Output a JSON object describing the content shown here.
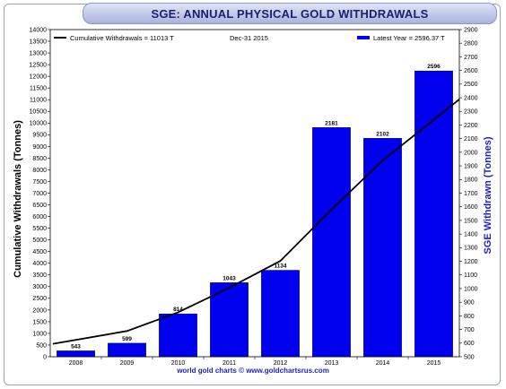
{
  "chart_data": {
    "type": "bar",
    "title": "SGE: ANNUAL PHYSICAL GOLD WITHDRAWALS",
    "categories": [
      "2008",
      "2009",
      "2010",
      "2011",
      "2012",
      "2013",
      "2014",
      "2015"
    ],
    "bar_series": {
      "legend_label": "Latest Year = 2596.37 T",
      "values": [
        543,
        599,
        814,
        1043,
        1134,
        2181,
        2102,
        2596
      ],
      "data_labels": [
        "543",
        "599",
        "814",
        "1043",
        "1134",
        "2181",
        "2102",
        "2596"
      ],
      "color": "#0000ee",
      "axis": "right"
    },
    "line_series": {
      "legend_label": "Cumulative Withdrawals = 11013 T",
      "x": [
        2007.55,
        2009,
        2010,
        2011,
        2012,
        2013,
        2014,
        2015.5
      ],
      "values": [
        550,
        1100,
        1900,
        2950,
        4100,
        6300,
        8400,
        11013
      ],
      "color": "#000000",
      "axis": "left"
    },
    "date_label": "Dec-31  2015",
    "ylabel_left": "Cumulative Withdrawals (Tonnes)",
    "ylabel_right": "SGE Withdrawn (Tonnes)",
    "ylim_left": [
      0,
      14000
    ],
    "ylim_right": [
      500,
      2900
    ],
    "yticks_left": [
      0,
      500,
      1000,
      1500,
      2000,
      2500,
      3000,
      3500,
      4000,
      4500,
      5000,
      5500,
      6000,
      6500,
      7000,
      7500,
      8000,
      8500,
      9000,
      9500,
      10000,
      10500,
      11000,
      11500,
      12000,
      12500,
      13000,
      13500,
      14000
    ],
    "yticks_right": [
      500,
      600,
      700,
      800,
      900,
      1000,
      1100,
      1200,
      1300,
      1400,
      1500,
      1600,
      1700,
      1800,
      1900,
      2000,
      2100,
      2200,
      2300,
      2400,
      2500,
      2600,
      2700,
      2800,
      2900
    ],
    "footer": "world gold charts © www.goldchartsrus.com",
    "grid": false,
    "legend_placement": "top"
  }
}
